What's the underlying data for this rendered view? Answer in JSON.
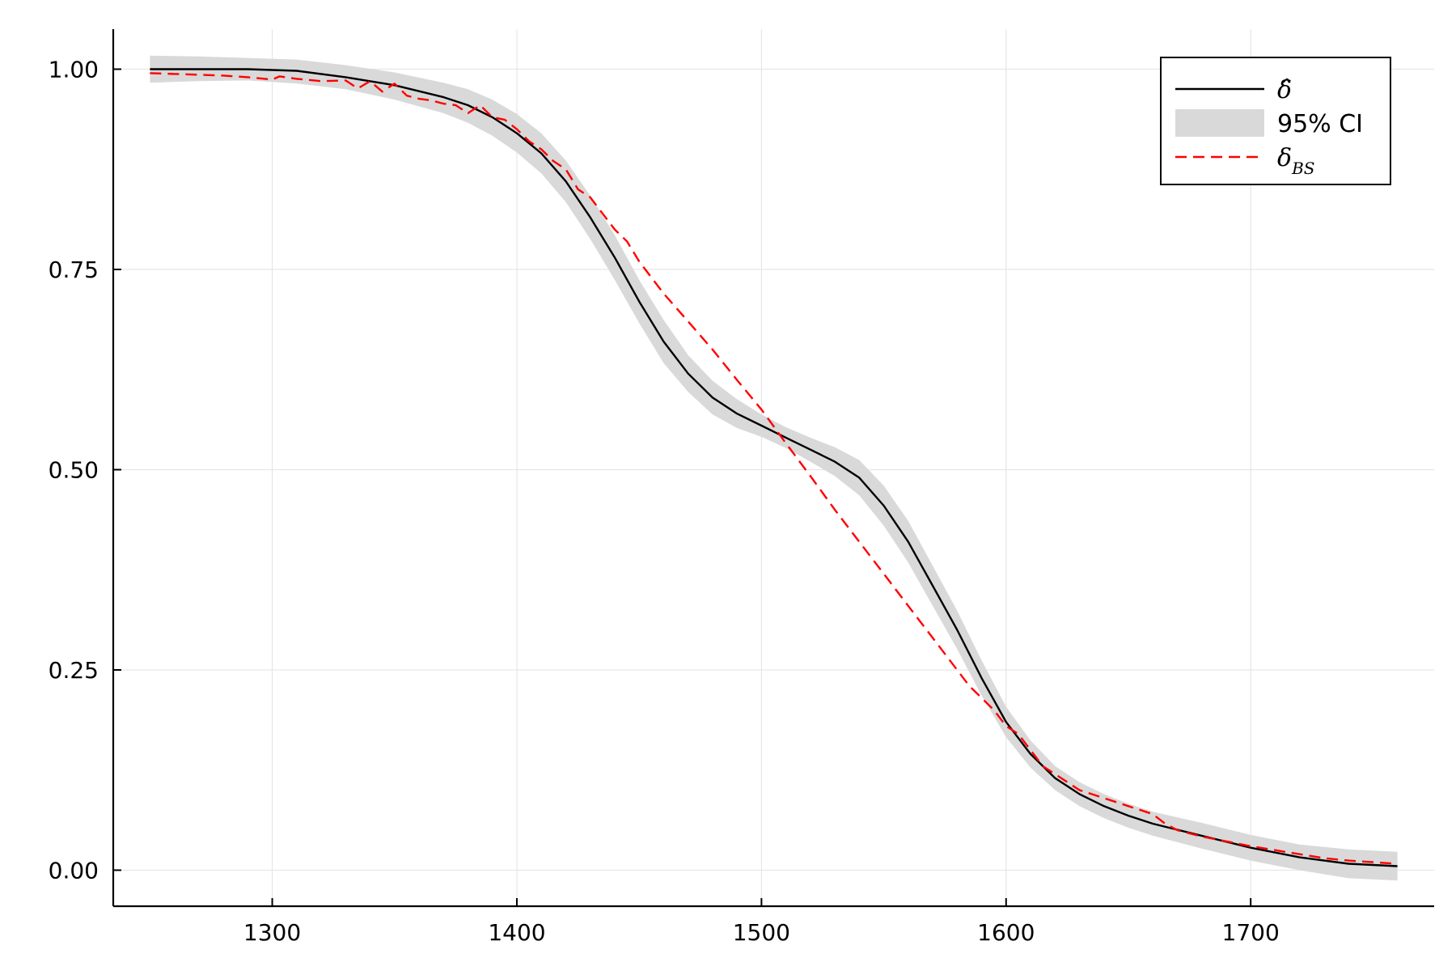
{
  "chart_data": {
    "type": "line",
    "xlim": [
      1235,
      1775
    ],
    "ylim": [
      -0.045,
      1.05
    ],
    "x_ticks": [
      1300,
      1400,
      1500,
      1600,
      1700
    ],
    "y_ticks": [
      0.0,
      0.25,
      0.5,
      0.75,
      1.0
    ],
    "x_tick_labels": [
      "1300",
      "1400",
      "1500",
      "1600",
      "1700"
    ],
    "y_tick_labels": [
      "0.00",
      "0.25",
      "0.50",
      "0.75",
      "1.00"
    ],
    "grid": true,
    "legend_position": "top-right",
    "colors": {
      "estimate": "#000000",
      "ci": "#d9d9d9",
      "bs": "#ff0000",
      "grid": "#e6e6e6",
      "axis": "#000000"
    },
    "legend": [
      {
        "key": "delta_hat",
        "label": "δ̂",
        "style": "solid"
      },
      {
        "key": "ci",
        "label": "95% CI",
        "style": "band"
      },
      {
        "key": "delta_bs",
        "label": "δ",
        "subscript": "BS",
        "style": "dashed"
      }
    ],
    "series": [
      {
        "key": "delta_hat",
        "x": [
          1250,
          1270,
          1290,
          1310,
          1330,
          1350,
          1370,
          1380,
          1390,
          1400,
          1410,
          1420,
          1430,
          1440,
          1450,
          1460,
          1470,
          1480,
          1490,
          1500,
          1510,
          1520,
          1530,
          1540,
          1550,
          1560,
          1570,
          1580,
          1590,
          1600,
          1610,
          1620,
          1630,
          1640,
          1650,
          1660,
          1680,
          1700,
          1720,
          1740,
          1760
        ],
        "y": [
          1.0,
          1.0,
          1.0,
          0.998,
          0.99,
          0.98,
          0.965,
          0.955,
          0.94,
          0.92,
          0.895,
          0.86,
          0.815,
          0.765,
          0.71,
          0.66,
          0.62,
          0.59,
          0.57,
          0.555,
          0.54,
          0.525,
          0.51,
          0.49,
          0.455,
          0.41,
          0.355,
          0.3,
          0.24,
          0.185,
          0.145,
          0.115,
          0.095,
          0.08,
          0.068,
          0.058,
          0.043,
          0.028,
          0.016,
          0.008,
          0.005
        ]
      },
      {
        "key": "ci",
        "x": [
          1250,
          1270,
          1290,
          1310,
          1330,
          1350,
          1370,
          1380,
          1390,
          1400,
          1410,
          1420,
          1430,
          1440,
          1450,
          1460,
          1470,
          1480,
          1490,
          1500,
          1510,
          1520,
          1530,
          1540,
          1550,
          1560,
          1570,
          1580,
          1590,
          1600,
          1610,
          1620,
          1630,
          1640,
          1650,
          1660,
          1680,
          1700,
          1720,
          1740,
          1760
        ],
        "lower": [
          0.983,
          0.985,
          0.986,
          0.982,
          0.975,
          0.962,
          0.945,
          0.933,
          0.917,
          0.896,
          0.87,
          0.834,
          0.788,
          0.737,
          0.683,
          0.633,
          0.597,
          0.569,
          0.552,
          0.541,
          0.527,
          0.51,
          0.492,
          0.468,
          0.43,
          0.384,
          0.33,
          0.276,
          0.218,
          0.166,
          0.128,
          0.1,
          0.08,
          0.065,
          0.053,
          0.043,
          0.027,
          0.012,
          0.0,
          -0.01,
          -0.013
        ],
        "upper": [
          1.017,
          1.016,
          1.014,
          1.012,
          1.005,
          0.996,
          0.983,
          0.975,
          0.962,
          0.944,
          0.92,
          0.886,
          0.842,
          0.793,
          0.737,
          0.687,
          0.643,
          0.611,
          0.588,
          0.569,
          0.553,
          0.54,
          0.528,
          0.512,
          0.48,
          0.436,
          0.38,
          0.324,
          0.262,
          0.204,
          0.162,
          0.13,
          0.11,
          0.095,
          0.083,
          0.073,
          0.059,
          0.044,
          0.032,
          0.026,
          0.023
        ]
      },
      {
        "key": "delta_bs",
        "x": [
          1250,
          1260,
          1270,
          1280,
          1290,
          1300,
          1303,
          1310,
          1320,
          1330,
          1335,
          1340,
          1345,
          1350,
          1355,
          1360,
          1365,
          1370,
          1375,
          1380,
          1385,
          1390,
          1395,
          1400,
          1405,
          1410,
          1415,
          1420,
          1425,
          1430,
          1435,
          1440,
          1445,
          1450,
          1455,
          1460,
          1470,
          1480,
          1490,
          1500,
          1510,
          1520,
          1530,
          1540,
          1550,
          1560,
          1570,
          1575,
          1580,
          1585,
          1590,
          1595,
          1600,
          1605,
          1610,
          1615,
          1620,
          1625,
          1630,
          1635,
          1640,
          1645,
          1650,
          1655,
          1660,
          1665,
          1670,
          1680,
          1690,
          1700,
          1710,
          1720,
          1730,
          1740,
          1750,
          1760
        ],
        "y": [
          0.995,
          0.994,
          0.993,
          0.992,
          0.99,
          0.987,
          0.991,
          0.988,
          0.985,
          0.986,
          0.976,
          0.985,
          0.972,
          0.982,
          0.967,
          0.963,
          0.961,
          0.957,
          0.955,
          0.945,
          0.955,
          0.94,
          0.937,
          0.925,
          0.91,
          0.9,
          0.885,
          0.875,
          0.85,
          0.84,
          0.82,
          0.8,
          0.785,
          0.76,
          0.74,
          0.72,
          0.685,
          0.65,
          0.612,
          0.575,
          0.533,
          0.492,
          0.45,
          0.41,
          0.37,
          0.33,
          0.29,
          0.27,
          0.25,
          0.23,
          0.215,
          0.2,
          0.18,
          0.17,
          0.15,
          0.13,
          0.12,
          0.11,
          0.1,
          0.095,
          0.09,
          0.085,
          0.08,
          0.075,
          0.07,
          0.058,
          0.05,
          0.042,
          0.036,
          0.03,
          0.025,
          0.02,
          0.015,
          0.012,
          0.01,
          0.008
        ]
      }
    ]
  }
}
